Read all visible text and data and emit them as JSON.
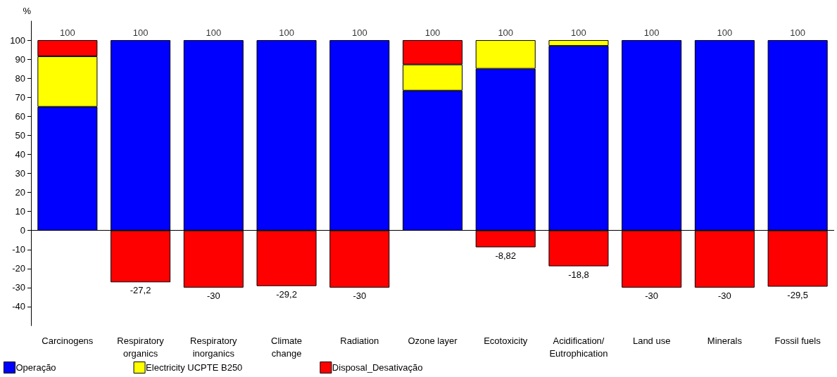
{
  "chart_data": {
    "type": "bar",
    "ylabel": "%",
    "stacked": true,
    "categories": [
      "Carcinogens",
      "Respiratory\norganics",
      "Respiratory\ninorganics",
      "Climate\nchange",
      "Radiation",
      "Ozone layer",
      "Ecotoxicity",
      "Acidification/\nEutrophication",
      "Land use",
      "Minerals",
      "Fossil fuels"
    ],
    "series": [
      {
        "name": "Operação",
        "color": "#0000ff",
        "values": [
          65,
          100,
          100,
          100,
          100,
          73.5,
          85,
          97,
          100,
          100,
          100
        ]
      },
      {
        "name": "Electricity UCPTE B250",
        "color": "#ffff00",
        "values": [
          26.5,
          null,
          null,
          null,
          null,
          13.7,
          15,
          3,
          null,
          null,
          null
        ]
      },
      {
        "name": "Disposal_Desativação",
        "color": "#ff0000",
        "values": [
          8.5,
          -27.2,
          -30,
          -29.2,
          -30,
          12.8,
          -8.82,
          -18.8,
          -30,
          -30,
          -29.5
        ],
        "value_labels": [
          null,
          "-27,2",
          "-30",
          "-29,2",
          "-30",
          null,
          "-8,82",
          "-18,8",
          "-30",
          "-30",
          "-29,5"
        ]
      }
    ],
    "annotations": [
      {
        "text": "100",
        "x": "Carcinogens",
        "y": 100
      },
      {
        "text": "100",
        "x": "Respiratory\norganics",
        "y": 100
      },
      {
        "text": "100",
        "x": "Respiratory\ninorganics",
        "y": 100
      },
      {
        "text": "100",
        "x": "Climate\nchange",
        "y": 100
      },
      {
        "text": "100",
        "x": "Radiation",
        "y": 100
      },
      {
        "text": "100",
        "x": "Ozone layer",
        "y": 100
      },
      {
        "text": "100",
        "x": "Ecotoxicity",
        "y": 100
      },
      {
        "text": "100",
        "x": "Acidification/\nEutrophication",
        "y": 100
      },
      {
        "text": "100",
        "x": "Land use",
        "y": 100
      },
      {
        "text": "100",
        "x": "Minerals",
        "y": 100
      },
      {
        "text": "100",
        "x": "Fossil fuels",
        "y": 100
      }
    ],
    "ref_lines": [
      {
        "axis": "y",
        "value": 0,
        "color": "#000000"
      }
    ],
    "ylim": [
      -50,
      110
    ],
    "yticks": [
      -40,
      -30,
      -20,
      -10,
      0,
      10,
      20,
      30,
      40,
      50,
      60,
      70,
      80,
      90,
      100
    ],
    "legend": "bottom left"
  }
}
